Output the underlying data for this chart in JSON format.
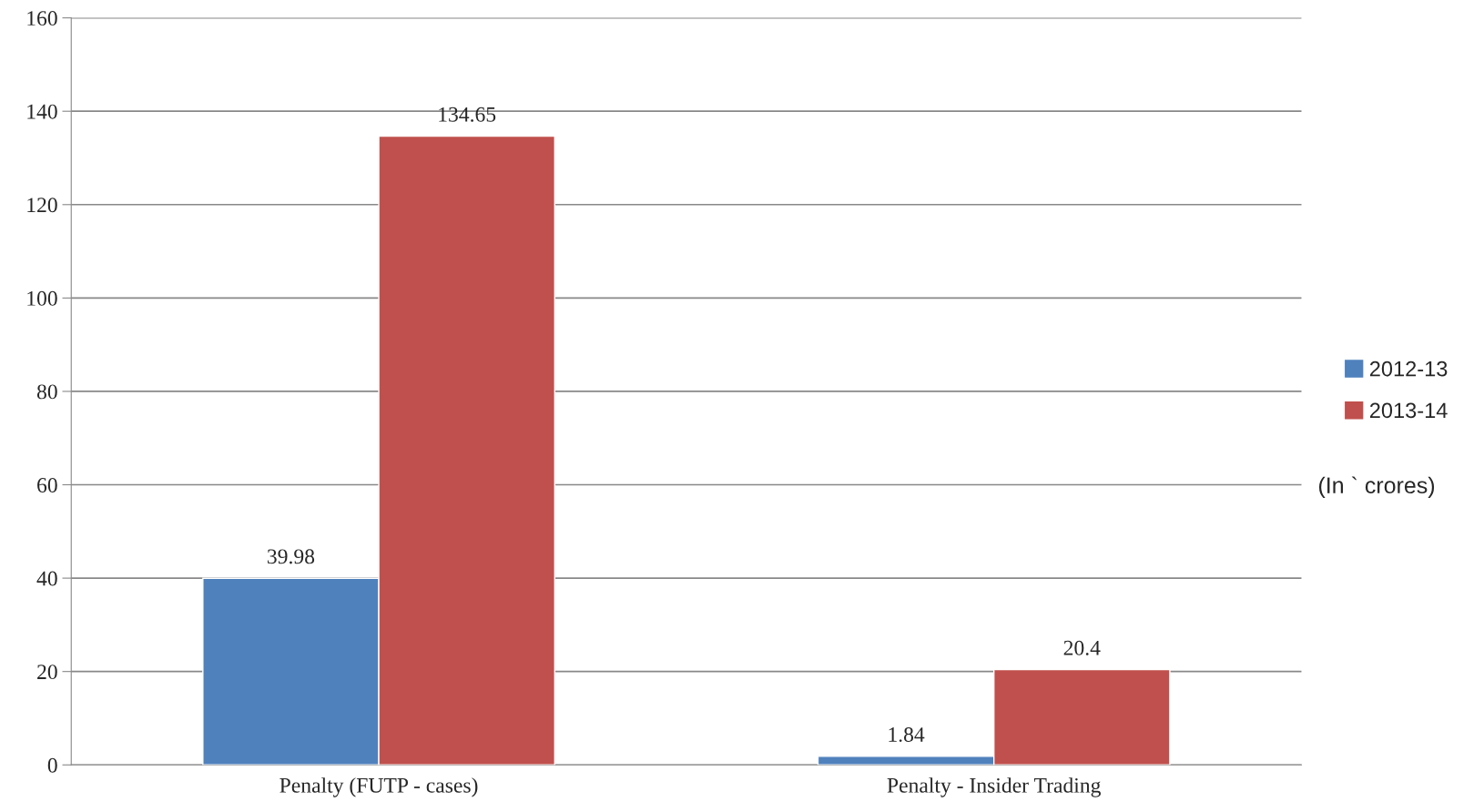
{
  "chart_data": {
    "type": "bar",
    "categories": [
      "Penalty (FUTP - cases)",
      "Penalty - Insider Trading"
    ],
    "series": [
      {
        "name": "2012-13",
        "color": "#4f81bd",
        "values": [
          39.98,
          1.84
        ]
      },
      {
        "name": "2013-14",
        "color": "#c0504d",
        "values": [
          134.65,
          20.4
        ]
      }
    ],
    "ylim": [
      0,
      160
    ],
    "yticks": [
      0,
      20,
      40,
      60,
      80,
      100,
      120,
      140,
      160
    ],
    "grid": "y",
    "legend": "right",
    "data_labels": true,
    "annotations": [
      "(In ` crores)"
    ]
  }
}
